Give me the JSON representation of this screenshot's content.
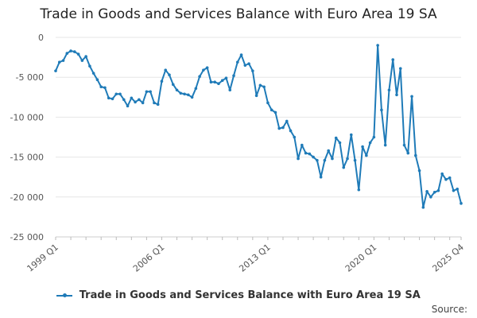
{
  "chart_data": {
    "type": "line",
    "title": "Trade in Goods and Services Balance with Euro Area 19 SA",
    "xlabel": "",
    "ylabel": "",
    "ylim": [
      -25000,
      0
    ],
    "yticks": [
      0,
      -5000,
      -10000,
      -15000,
      -20000,
      -25000
    ],
    "ytick_labels": [
      "0",
      "-5 000",
      "-10 000",
      "-15 000",
      "-20 000",
      "-25 000"
    ],
    "xtick_labels": [
      {
        "label": "1999 Q1",
        "index": 0
      },
      {
        "label": "2006 Q1",
        "index": 28
      },
      {
        "label": "2013 Q1",
        "index": 56
      },
      {
        "label": "2020 Q1",
        "index": 84
      },
      {
        "label": "2025 Q4",
        "index": 107
      }
    ],
    "series": [
      {
        "name": "Trade in Goods and Services Balance with Euro Area 19 SA",
        "color": "#1f7bb8",
        "values": [
          -4200,
          -3100,
          -2900,
          -2000,
          -1700,
          -1800,
          -2100,
          -2900,
          -2400,
          -3600,
          -4500,
          -5300,
          -6200,
          -6300,
          -7600,
          -7700,
          -7100,
          -7100,
          -7800,
          -8600,
          -7600,
          -8100,
          -7800,
          -8200,
          -6800,
          -6800,
          -8200,
          -8400,
          -5500,
          -4100,
          -4700,
          -5900,
          -6600,
          -7000,
          -7100,
          -7200,
          -7500,
          -6400,
          -4900,
          -4100,
          -3800,
          -5600,
          -5600,
          -5800,
          -5400,
          -5100,
          -6600,
          -4800,
          -3100,
          -2200,
          -3500,
          -3300,
          -4200,
          -7300,
          -6000,
          -6200,
          -8200,
          -9100,
          -9400,
          -11400,
          -11300,
          -10500,
          -11700,
          -12500,
          -15200,
          -13500,
          -14500,
          -14600,
          -15000,
          -15400,
          -17500,
          -15400,
          -14200,
          -15200,
          -12600,
          -13200,
          -16300,
          -15200,
          -12200,
          -15400,
          -19100,
          -13700,
          -14800,
          -13200,
          -12500,
          -1000,
          -9100,
          -13500,
          -6600,
          -2800,
          -7200,
          -3900,
          -13500,
          -14500,
          -7400,
          -14800,
          -16700,
          -21300,
          -19300,
          -20000,
          -19400,
          -19200,
          -17100,
          -17800,
          -17600,
          -19200,
          -19000,
          -20800
        ]
      }
    ]
  },
  "legend": {
    "label": "Trade in Goods and Services Balance with Euro Area 19 SA"
  },
  "footer": {
    "source_label": "Source:"
  }
}
